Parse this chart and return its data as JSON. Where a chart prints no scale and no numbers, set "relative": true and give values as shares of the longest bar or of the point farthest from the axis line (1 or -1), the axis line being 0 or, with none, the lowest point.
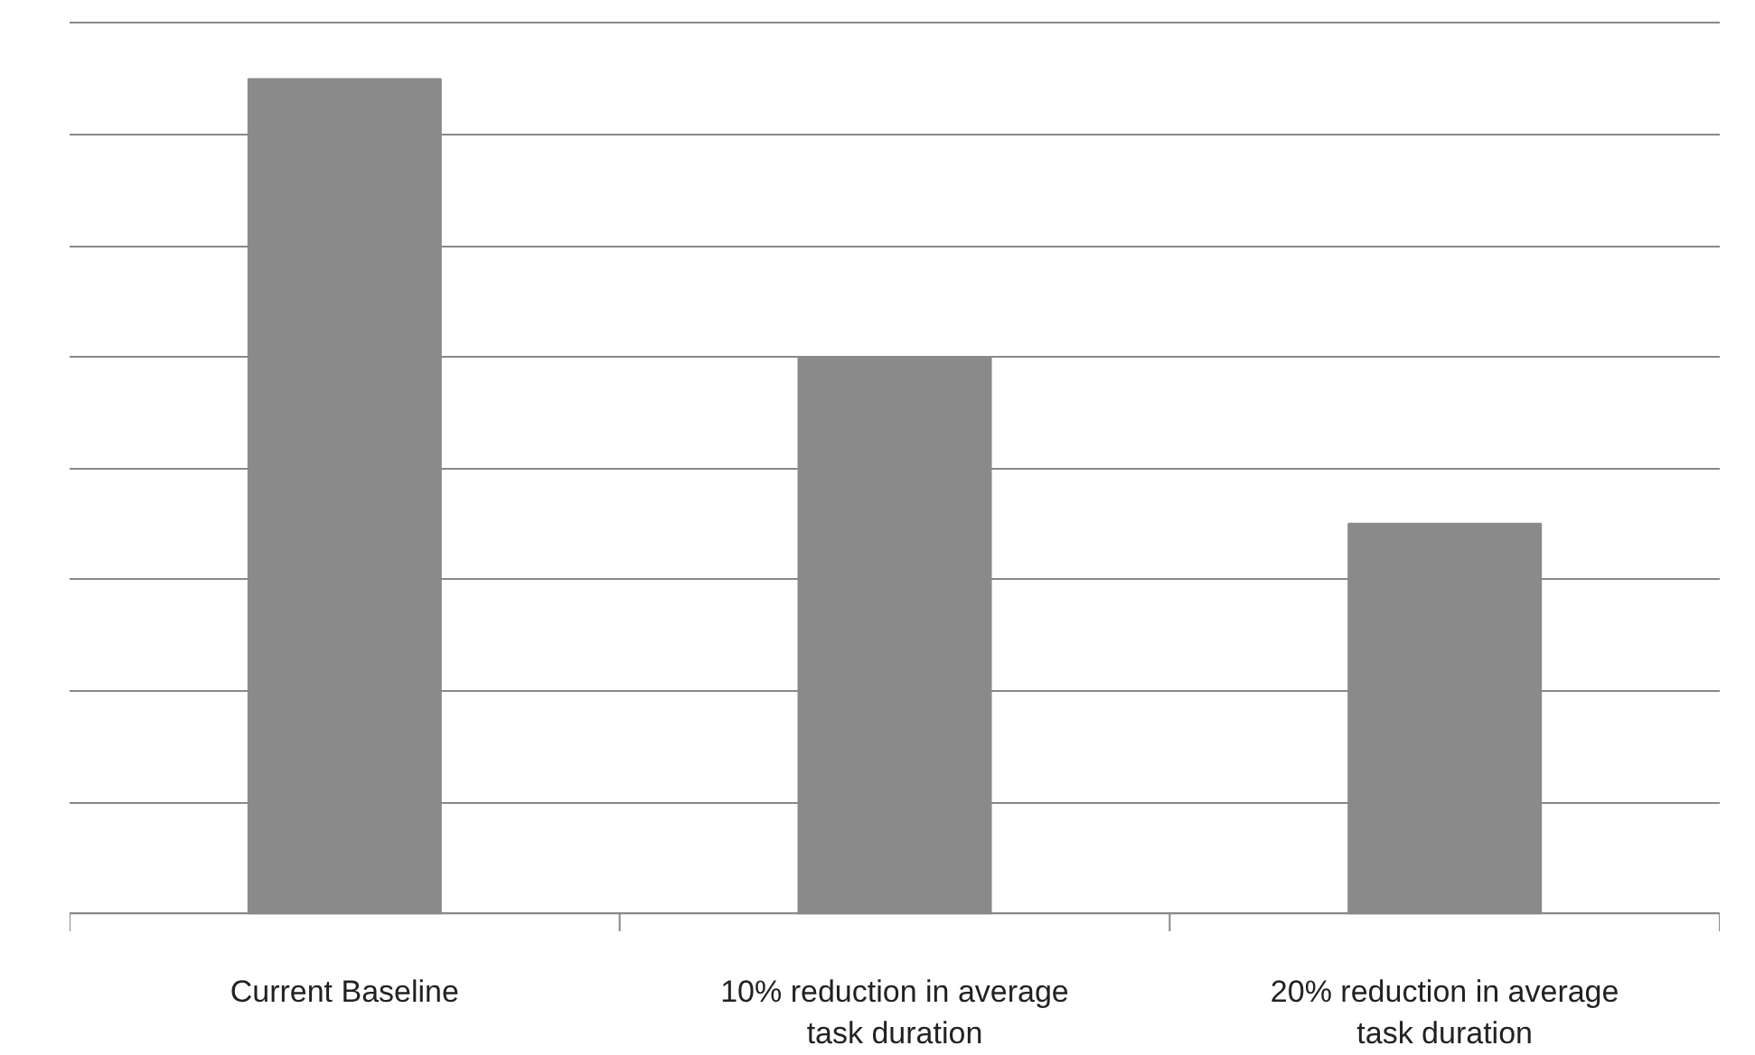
{
  "chart_data": {
    "type": "bar",
    "categories": [
      "Current Baseline",
      "10% reduction in average task duration",
      "20% reduction in average task duration"
    ],
    "values": [
      1,
      0.667,
      0.467
    ],
    "relative": true,
    "color": "#8a8a8a",
    "grid": "y"
  }
}
